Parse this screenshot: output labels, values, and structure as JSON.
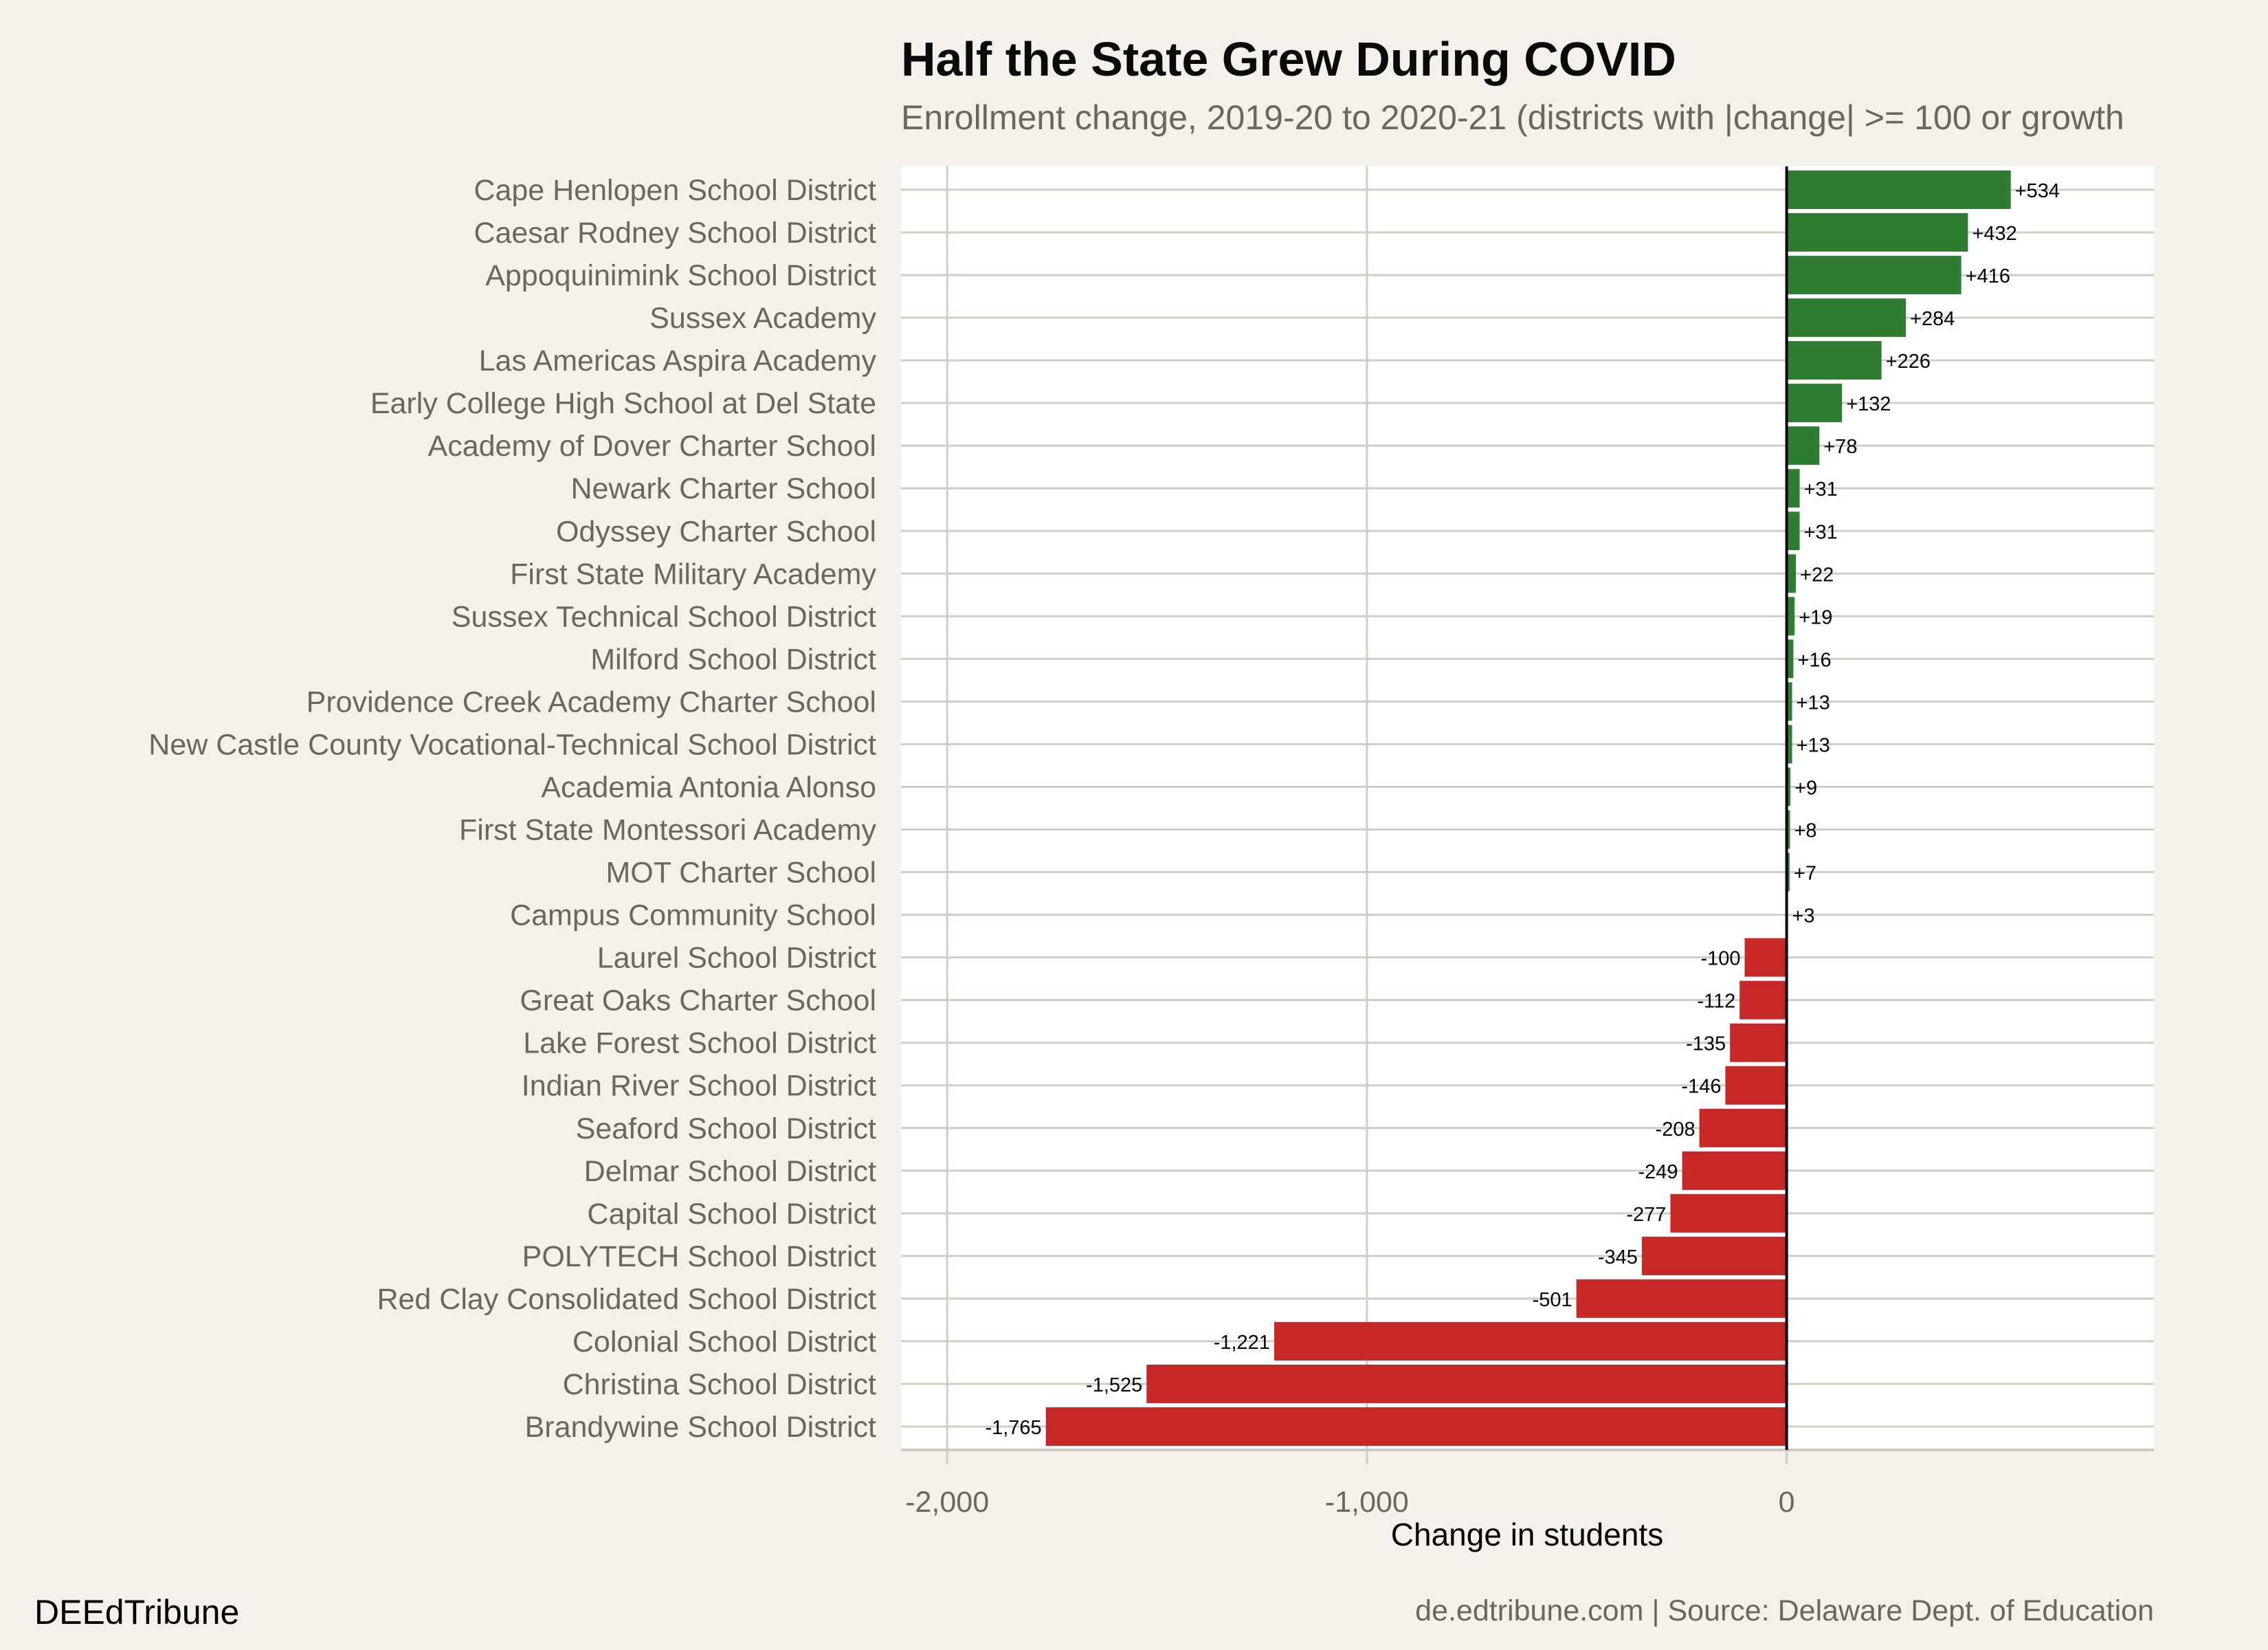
{
  "brand": "DEEdTribune",
  "caption": "de.edtribune.com | Source: Delaware Dept. of Education",
  "chart_data": {
    "type": "bar",
    "orientation": "horizontal",
    "title": "Half the State Grew During COVID",
    "subtitle": "Enrollment change, 2019-20 to 2020-21 (districts with |change| >= 100 or growth",
    "xlabel": "Change in students",
    "ylabel": "",
    "xlim": [
      -2110,
      875
    ],
    "xticks": [
      -2000,
      -1000,
      0
    ],
    "xtick_labels": [
      "-2,000",
      "-1,000",
      "0"
    ],
    "grid": true,
    "colors": {
      "positive": "#2e7d32",
      "negative": "#c62828",
      "background": "#f4f1ec",
      "panel": "#ffffff"
    },
    "categories": [
      "Cape Henlopen School District",
      "Caesar Rodney School District",
      "Appoquinimink School District",
      "Sussex Academy",
      "Las Americas Aspira Academy",
      "Early College High School at Del State",
      "Academy of Dover Charter School",
      "Newark Charter School",
      "Odyssey Charter School",
      "First State Military Academy",
      "Sussex Technical School District",
      "Milford School District",
      "Providence Creek Academy Charter School",
      "New Castle County Vocational-Technical School District",
      "Academia Antonia Alonso",
      "First State Montessori Academy",
      "MOT Charter School",
      "Campus Community School",
      "Laurel School District",
      "Great Oaks Charter School",
      "Lake Forest School District",
      "Indian River School District",
      "Seaford School District",
      "Delmar School District",
      "Capital School District",
      "POLYTECH School District",
      "Red Clay Consolidated School District",
      "Colonial School District",
      "Christina School District",
      "Brandywine School District"
    ],
    "values": [
      534,
      432,
      416,
      284,
      226,
      132,
      78,
      31,
      31,
      22,
      19,
      16,
      13,
      13,
      9,
      8,
      7,
      3,
      -100,
      -112,
      -135,
      -146,
      -208,
      -249,
      -277,
      -345,
      -501,
      -1221,
      -1525,
      -1765
    ],
    "value_labels": [
      "+534",
      "+432",
      "+416",
      "+284",
      "+226",
      "+132",
      "+78",
      "+31",
      "+31",
      "+22",
      "+19",
      "+16",
      "+13",
      "+13",
      "+9",
      "+8",
      "+7",
      "+3",
      "-100",
      "-112",
      "-135",
      "-146",
      "-208",
      "-249",
      "-277",
      "-345",
      "-501",
      "-1,221",
      "-1,525",
      "-1,765"
    ]
  }
}
